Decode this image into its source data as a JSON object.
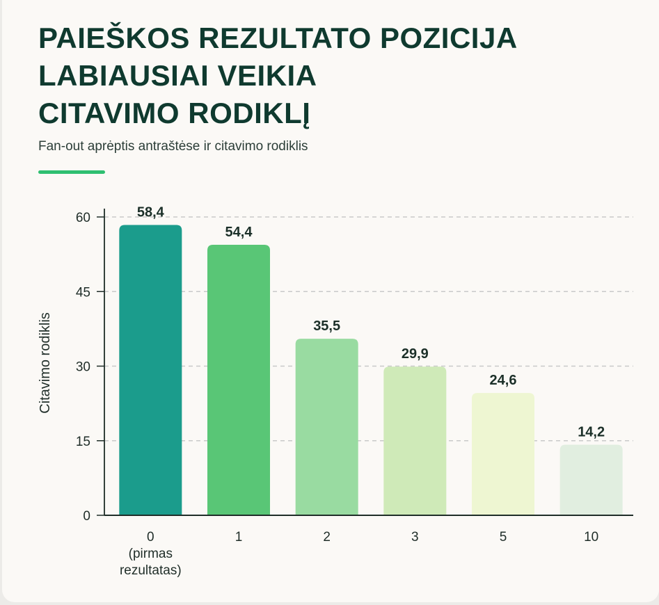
{
  "header": {
    "title_lines": [
      "PAIEŠKOS REZULTATO POZICIJA",
      "LABIAUSIAI VEIKIA",
      "CITAVIMO RODIKLĮ"
    ],
    "subtitle": "Fan-out aprėptis antraštėse ir citavimo rodiklis"
  },
  "colors": {
    "accent": "#2fbf71",
    "title": "#0f3a2f",
    "bars": [
      "#1b9c8c",
      "#59c676",
      "#99dba1",
      "#cfeab8",
      "#eef6d2",
      "#e1eee0"
    ]
  },
  "chart_data": {
    "type": "bar",
    "ylabel": "Citavimo rodiklis",
    "xlabel": "",
    "categories": [
      [
        "0",
        "(pirmas",
        "rezultatas)"
      ],
      [
        "1"
      ],
      [
        "2"
      ],
      [
        "3"
      ],
      [
        "5"
      ],
      [
        "10"
      ]
    ],
    "values": [
      58.4,
      54.4,
      35.5,
      29.9,
      24.6,
      14.2
    ],
    "value_labels": [
      "58,4",
      "54,4",
      "35,5",
      "29,9",
      "24,6",
      "14,2"
    ],
    "ylim": [
      0,
      60
    ],
    "yticks": [
      0,
      15,
      30,
      45,
      60
    ],
    "grid": true
  }
}
